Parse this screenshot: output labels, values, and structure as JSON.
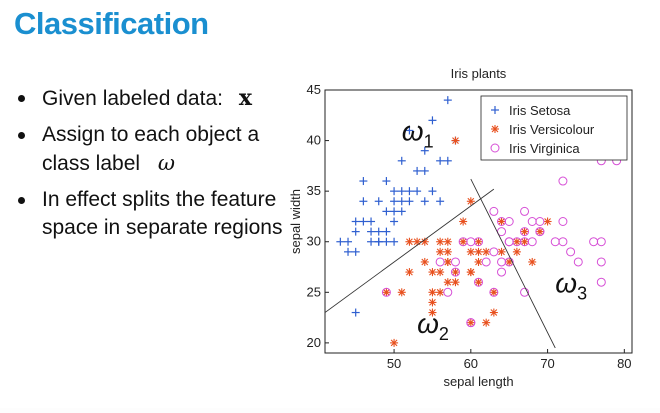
{
  "slide": {
    "title": "Classification",
    "bullets": [
      {
        "text": "Given labeled data:",
        "symbol": "x"
      },
      {
        "text": "Assign to each object a class label",
        "symbol": "ω"
      },
      {
        "text": "In effect splits the feature space in separate regions",
        "symbol": ""
      }
    ]
  },
  "colors": {
    "title": "#1a8fd0",
    "setosa": "#2f5fd0",
    "versicolour": "#e8501e",
    "virginica": "#d64fd6"
  },
  "chart_data": {
    "type": "scatter",
    "title": "Iris plants",
    "xlabel": "sepal length",
    "ylabel": "sepal width",
    "xlim": [
      41,
      81
    ],
    "ylim": [
      19,
      45
    ],
    "xticks": [
      50,
      60,
      70,
      80
    ],
    "yticks": [
      20,
      25,
      30,
      35,
      40,
      45
    ],
    "grid": false,
    "legend_position": "top-right",
    "series": [
      {
        "name": "Iris Setosa",
        "marker": "plus",
        "color": "#2f5fd0",
        "x": [
          43,
          44,
          44,
          45,
          45,
          45,
          46,
          46,
          46,
          47,
          47,
          47,
          48,
          48,
          48,
          48,
          49,
          49,
          49,
          49,
          50,
          50,
          50,
          50,
          50,
          51,
          51,
          51,
          51,
          52,
          52,
          52,
          53,
          53,
          54,
          54,
          54,
          55,
          55,
          56,
          56,
          57,
          57,
          58,
          45
        ],
        "y": [
          30,
          29,
          30,
          32,
          29,
          31,
          34,
          32,
          36,
          32,
          31,
          30,
          30,
          31,
          34,
          30,
          31,
          30,
          36,
          33,
          33,
          35,
          34,
          32,
          30,
          35,
          33,
          38,
          34,
          41,
          34,
          35,
          37,
          35,
          39,
          34,
          37,
          42,
          35,
          38,
          34,
          44,
          38,
          40,
          23
        ]
      },
      {
        "name": "Iris Versicolour",
        "marker": "star",
        "color": "#e8501e",
        "x": [
          49,
          50,
          51,
          52,
          52,
          54,
          54,
          55,
          55,
          55,
          56,
          56,
          56,
          56,
          57,
          57,
          57,
          57,
          58,
          58,
          58,
          59,
          59,
          60,
          60,
          60,
          60,
          61,
          61,
          61,
          62,
          62,
          63,
          63,
          64,
          64,
          65,
          66,
          66,
          67,
          67,
          68,
          69,
          70,
          55,
          57,
          53,
          60,
          61
        ],
        "y": [
          25,
          20,
          25,
          27,
          30,
          30,
          28,
          25,
          24,
          27,
          29,
          30,
          25,
          27,
          28,
          29,
          26,
          30,
          27,
          26,
          40,
          30,
          32,
          29,
          22,
          34,
          27,
          28,
          30,
          29,
          29,
          22,
          25,
          23,
          29,
          32,
          28,
          30,
          29,
          31,
          30,
          28,
          31,
          32,
          23,
          28,
          30,
          27,
          26
        ],
        "noise": "rounded reading"
      },
      {
        "name": "Iris Virginica",
        "marker": "circle",
        "color": "#d64fd6",
        "x": [
          49,
          56,
          57,
          58,
          58,
          59,
          60,
          60,
          61,
          61,
          62,
          63,
          63,
          63,
          64,
          64,
          64,
          64,
          65,
          65,
          65,
          65,
          66,
          67,
          67,
          67,
          67,
          68,
          68,
          69,
          69,
          69,
          71,
          72,
          72,
          72,
          73,
          74,
          76,
          77,
          77,
          77,
          77,
          79,
          60
        ],
        "y": [
          25,
          28,
          25,
          27,
          28,
          30,
          30,
          22,
          30,
          26,
          28,
          33,
          29,
          25,
          27,
          28,
          32,
          31,
          30,
          32,
          30,
          28,
          30,
          33,
          31,
          30,
          25,
          30,
          32,
          31,
          32,
          31,
          30,
          36,
          32,
          30,
          29,
          28,
          30,
          38,
          26,
          30,
          28,
          38,
          22
        ]
      }
    ],
    "boundaries": [
      {
        "from": [
          41,
          23
        ],
        "to": [
          63,
          35.2
        ]
      },
      {
        "from": [
          60,
          36.2
        ],
        "to": [
          71,
          19.5
        ]
      }
    ],
    "annotations": [
      {
        "text": "ω",
        "sub": "1",
        "at": [
          51,
          40
        ]
      },
      {
        "text": "ω",
        "sub": "2",
        "at": [
          53,
          21
        ]
      },
      {
        "text": "ω",
        "sub": "3",
        "at": [
          71,
          25
        ]
      }
    ]
  }
}
